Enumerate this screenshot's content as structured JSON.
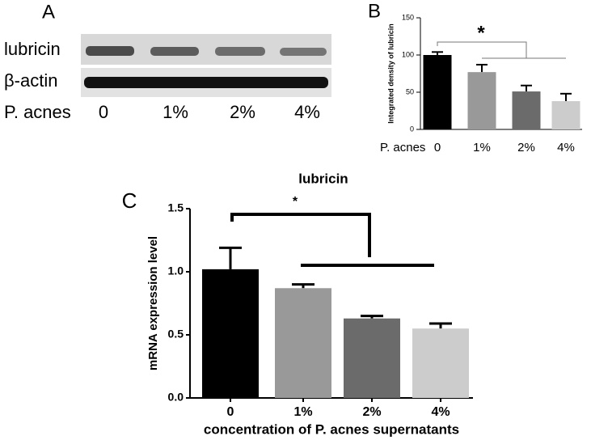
{
  "panel_a": {
    "letter": "A",
    "rows": [
      "lubricin",
      "β-actin"
    ],
    "x_label": "P. acnes",
    "lanes": [
      "0",
      "1%",
      "2%",
      "4%"
    ]
  },
  "chart_data": [
    {
      "type": "bar",
      "letter": "B",
      "ylabel": "Integrated  density of lubricin",
      "xlabel": "P. acnes",
      "categories": [
        "0",
        "1%",
        "2%",
        "4%"
      ],
      "values": [
        100,
        77,
        51,
        38
      ],
      "errors": [
        4,
        10,
        8,
        10
      ],
      "colors": [
        "#000000",
        "#999999",
        "#6b6b6b",
        "#cccccc"
      ],
      "ylim": [
        0,
        150
      ],
      "yticks": [
        0,
        50,
        100,
        150
      ],
      "annotation": "*"
    },
    {
      "type": "bar",
      "letter": "C",
      "title": "lubricin",
      "ylabel": "mRNA expression level",
      "xlabel": "concentration of P. acnes supernatants",
      "categories": [
        "0",
        "1%",
        "2%",
        "4%"
      ],
      "values": [
        1.02,
        0.87,
        0.63,
        0.55
      ],
      "errors": [
        0.17,
        0.03,
        0.02,
        0.04
      ],
      "colors": [
        "#000000",
        "#999999",
        "#6b6b6b",
        "#cccccc"
      ],
      "ylim": [
        0,
        1.5
      ],
      "yticks": [
        {
          "value": 0,
          "label": "0.0"
        },
        0.5,
        {
          "value": 1,
          "label": "1.0"
        },
        1.5
      ],
      "annotation": "*"
    }
  ]
}
